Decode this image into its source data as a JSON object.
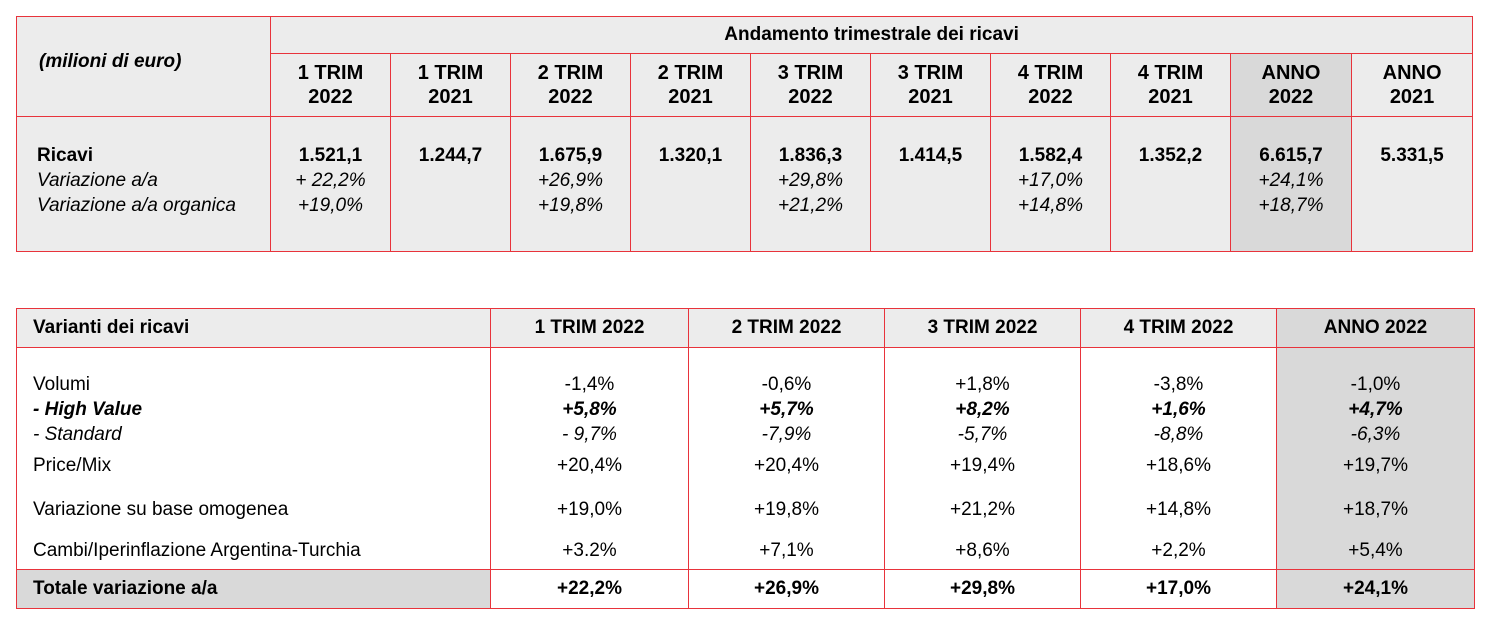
{
  "table1": {
    "unit_label": "(milioni di euro)",
    "title": "Andamento trimestrale dei ricavi",
    "columns": [
      {
        "l1": "1 TRIM",
        "l2": "2022"
      },
      {
        "l1": "1 TRIM",
        "l2": "2021"
      },
      {
        "l1": "2 TRIM",
        "l2": "2022"
      },
      {
        "l1": "2 TRIM",
        "l2": "2021"
      },
      {
        "l1": "3 TRIM",
        "l2": "2022"
      },
      {
        "l1": "3 TRIM",
        "l2": "2021"
      },
      {
        "l1": "4 TRIM",
        "l2": "2022"
      },
      {
        "l1": "4 TRIM",
        "l2": "2021"
      },
      {
        "l1": "ANNO",
        "l2": "2022"
      },
      {
        "l1": "ANNO",
        "l2": "2021"
      }
    ],
    "row_labels": {
      "main": "Ricavi",
      "sub1": "Variazione a/a",
      "sub2": "Variazione a/a organica"
    },
    "values": [
      {
        "main": "1.521,1",
        "sub1": "+ 22,2%",
        "sub2": "+19,0%"
      },
      {
        "main": "1.244,7",
        "sub1": "",
        "sub2": ""
      },
      {
        "main": "1.675,9",
        "sub1": "+26,9%",
        "sub2": "+19,8%"
      },
      {
        "main": "1.320,1",
        "sub1": "",
        "sub2": ""
      },
      {
        "main": "1.836,3",
        "sub1": "+29,8%",
        "sub2": "+21,2%"
      },
      {
        "main": "1.414,5",
        "sub1": "",
        "sub2": ""
      },
      {
        "main": "1.582,4",
        "sub1": "+17,0%",
        "sub2": "+14,8%"
      },
      {
        "main": "1.352,2",
        "sub1": "",
        "sub2": ""
      },
      {
        "main": "6.615,7",
        "sub1": "+24,1%",
        "sub2": "+18,7%"
      },
      {
        "main": "5.331,5",
        "sub1": "",
        "sub2": ""
      }
    ]
  },
  "table2": {
    "header_label": "Varianti dei ricavi",
    "columns": [
      "1 TRIM 2022",
      "2 TRIM 2022",
      "3 TRIM 2022",
      "4 TRIM 2022",
      "ANNO 2022"
    ],
    "row_labels": {
      "volumi": "Volumi",
      "high_value": "- High Value",
      "standard": "- Standard",
      "price_mix": "Price/Mix",
      "omogenea": "Variazione su base omogenea",
      "cambi": "Cambi/Iperinflazione Argentina-Turchia"
    },
    "values": [
      {
        "volumi": "-1,4%",
        "high_value": "+5,8%",
        "standard": "- 9,7%",
        "price_mix": "+20,4%",
        "omogenea": "+19,0%",
        "cambi": "+3.2%"
      },
      {
        "volumi": "-0,6%",
        "high_value": "+5,7%",
        "standard": "-7,9%",
        "price_mix": "+20,4%",
        "omogenea": "+19,8%",
        "cambi": "+7,1%"
      },
      {
        "volumi": "+1,8%",
        "high_value": "+8,2%",
        "standard": "-5,7%",
        "price_mix": "+19,4%",
        "omogenea": "+21,2%",
        "cambi": "+8,6%"
      },
      {
        "volumi": "-3,8%",
        "high_value": "+1,6%",
        "standard": "-8,8%",
        "price_mix": "+18,6%",
        "omogenea": "+14,8%",
        "cambi": "+2,2%"
      },
      {
        "volumi": "-1,0%",
        "high_value": "+4,7%",
        "standard": "-6,3%",
        "price_mix": "+19,7%",
        "omogenea": "+18,7%",
        "cambi": "+5,4%"
      }
    ],
    "total_label": "Totale variazione a/a",
    "totals": [
      "+22,2%",
      "+26,9%",
      "+29,8%",
      "+17,0%",
      "+24,1%"
    ]
  },
  "colors": {
    "border": "#e8333b",
    "shade": "#d9d9d9",
    "header_bg": "#ececec"
  }
}
